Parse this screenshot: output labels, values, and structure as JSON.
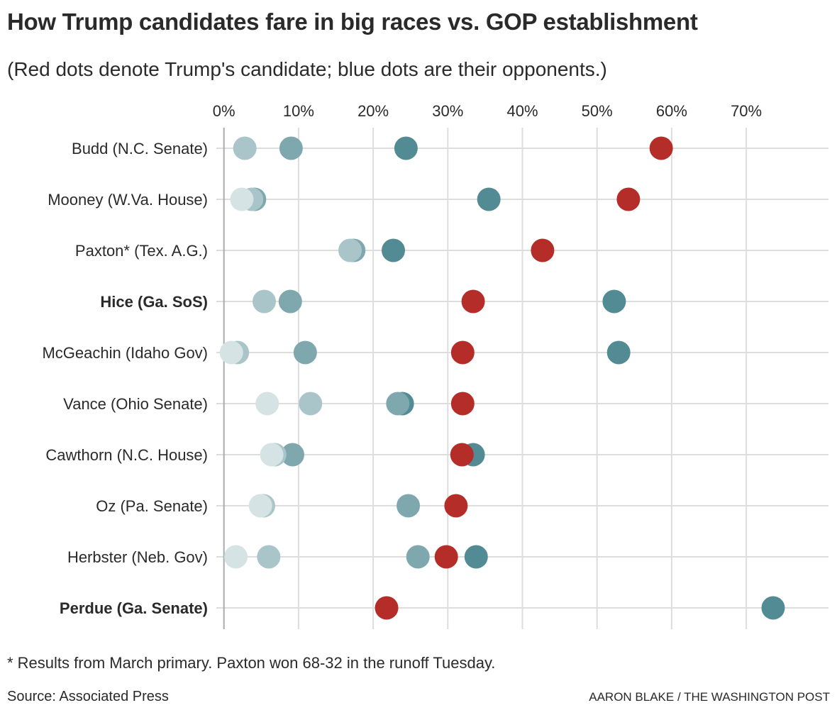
{
  "header": {
    "title": "How Trump candidates fare in big races vs. GOP establishment",
    "subtitle": "(Red dots denote Trump's candidate; blue dots are their opponents.)"
  },
  "footer": {
    "footnote": "* Results from March primary. Paxton won 68-32 in the runoff Tuesday.",
    "source": "Source: Associated Press",
    "credit": "AARON BLAKE / THE WASHINGTON POST"
  },
  "colors": {
    "trump": "#b52d28",
    "opponent_dark": "#528b93",
    "opponent_mid": "#7ea8ae",
    "opponent_light": "#aac5ca",
    "opponent_lightest": "#d5e3e5",
    "grid": "#dddddd",
    "axis": "#aaaaaa"
  },
  "chart_data": {
    "type": "scatter",
    "subtype": "dot-plot",
    "title": "How Trump candidates fare in big races vs. GOP establishment",
    "subtitle": "(Red dots denote Trump's candidate; blue dots are their opponents.)",
    "xlabel": "",
    "ylabel": "",
    "xlim": [
      0,
      80
    ],
    "x_ticks": [
      0,
      10,
      20,
      30,
      40,
      50,
      60,
      70
    ],
    "x_tick_labels": [
      "0%",
      "10%",
      "20%",
      "30%",
      "40%",
      "50%",
      "60%",
      "70%"
    ],
    "x_axis_position": "top",
    "grid": true,
    "legend": "none (explained in subtitle)",
    "rows": [
      {
        "label": "Budd (N.C. Senate)",
        "bold": false,
        "trump": 58.6,
        "opponents": [
          {
            "value": 2.8,
            "shade": "light"
          },
          {
            "value": 9.0,
            "shade": "mid"
          },
          {
            "value": 24.4,
            "shade": "dark"
          }
        ]
      },
      {
        "label": "Mooney (W.Va. House)",
        "bold": false,
        "trump": 54.2,
        "opponents": [
          {
            "value": 4.1,
            "shade": "mid"
          },
          {
            "value": 3.7,
            "shade": "light"
          },
          {
            "value": 2.4,
            "shade": "lightest"
          },
          {
            "value": 35.5,
            "shade": "dark"
          }
        ]
      },
      {
        "label": "Paxton* (Tex. A.G.)",
        "bold": false,
        "trump": 42.7,
        "opponents": [
          {
            "value": 17.4,
            "shade": "mid"
          },
          {
            "value": 16.9,
            "shade": "light"
          },
          {
            "value": 22.7,
            "shade": "dark"
          }
        ]
      },
      {
        "label": "Hice (Ga. SoS)",
        "bold": true,
        "trump": 33.4,
        "opponents": [
          {
            "value": 5.4,
            "shade": "light"
          },
          {
            "value": 8.9,
            "shade": "mid"
          },
          {
            "value": 52.3,
            "shade": "dark"
          }
        ]
      },
      {
        "label": "McGeachin (Idaho Gov)",
        "bold": false,
        "trump": 32.0,
        "opponents": [
          {
            "value": 1.8,
            "shade": "light"
          },
          {
            "value": 1.0,
            "shade": "lightest"
          },
          {
            "value": 10.9,
            "shade": "mid"
          },
          {
            "value": 52.9,
            "shade": "dark"
          }
        ]
      },
      {
        "label": "Vance (Ohio Senate)",
        "bold": false,
        "trump": 32.0,
        "opponents": [
          {
            "value": 5.8,
            "shade": "lightest"
          },
          {
            "value": 11.6,
            "shade": "light"
          },
          {
            "value": 23.9,
            "shade": "dark"
          },
          {
            "value": 23.3,
            "shade": "mid"
          }
        ]
      },
      {
        "label": "Cawthorn (N.C. House)",
        "bold": false,
        "trump": 31.9,
        "opponents": [
          {
            "value": 9.2,
            "shade": "mid"
          },
          {
            "value": 6.8,
            "shade": "light"
          },
          {
            "value": 6.4,
            "shade": "lightest"
          },
          {
            "value": 33.4,
            "shade": "dark"
          }
        ]
      },
      {
        "label": "Oz (Pa. Senate)",
        "bold": false,
        "trump": 31.1,
        "opponents": [
          {
            "value": 5.3,
            "shade": "light"
          },
          {
            "value": 4.9,
            "shade": "lightest"
          },
          {
            "value": 24.7,
            "shade": "mid"
          }
        ]
      },
      {
        "label": "Herbster (Neb. Gov)",
        "bold": false,
        "trump": 29.8,
        "opponents": [
          {
            "value": 1.6,
            "shade": "lightest"
          },
          {
            "value": 6.0,
            "shade": "light"
          },
          {
            "value": 26.0,
            "shade": "mid"
          },
          {
            "value": 33.8,
            "shade": "dark"
          }
        ]
      },
      {
        "label": "Perdue (Ga. Senate)",
        "bold": true,
        "trump": 21.8,
        "opponents": [
          {
            "value": 73.6,
            "shade": "dark"
          }
        ]
      }
    ]
  }
}
